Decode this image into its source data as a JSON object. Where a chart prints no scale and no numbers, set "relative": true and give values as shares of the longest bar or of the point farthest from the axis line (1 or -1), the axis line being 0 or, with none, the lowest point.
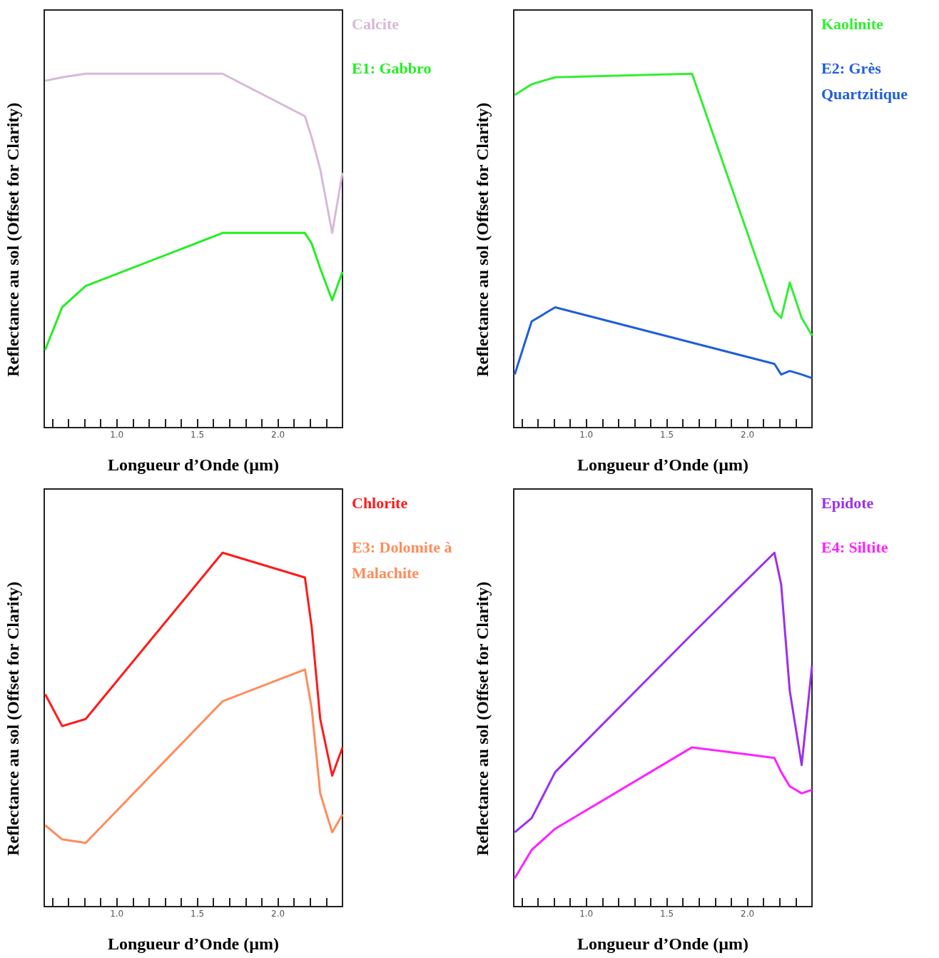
{
  "chart_data": [
    {
      "type": "line",
      "relative": true,
      "legend": "right",
      "xlabel": "Longueur d’Onde (µm)",
      "ylabel": "Reflectance au sol (Offset for Clarity)",
      "x": [
        0.556,
        0.661,
        0.807,
        1.656,
        2.167,
        2.209,
        2.262,
        2.336,
        2.4
      ],
      "xlim": [
        0.55,
        2.4
      ],
      "xticks": [
        {
          "value": 0.6,
          "label": null
        },
        {
          "value": 0.7,
          "label": null
        },
        {
          "value": 0.8,
          "label": null
        },
        {
          "value": 0.9,
          "label": null
        },
        {
          "value": 1.0,
          "label": "1.0"
        },
        {
          "value": 1.1,
          "label": null
        },
        {
          "value": 1.2,
          "label": null
        },
        {
          "value": 1.3,
          "label": null
        },
        {
          "value": 1.4,
          "label": null
        },
        {
          "value": 1.5,
          "label": "1.5"
        },
        {
          "value": 1.6,
          "label": null
        },
        {
          "value": 1.7,
          "label": null
        },
        {
          "value": 1.8,
          "label": null
        },
        {
          "value": 1.9,
          "label": null
        },
        {
          "value": 2.0,
          "label": "2.0"
        },
        {
          "value": 2.1,
          "label": null
        },
        {
          "value": 2.2,
          "label": null
        },
        {
          "value": 2.3,
          "label": null
        }
      ],
      "series": [
        {
          "name": "Calcite",
          "color": "#d8b8d8",
          "values": [
            0.98,
            0.99,
            1,
            1,
            0.88,
            0.82,
            0.73,
            0.55,
            0.72
          ]
        },
        {
          "name": "E1: Gabbro",
          "color": "#22ee22",
          "values": [
            0.22,
            0.34,
            0.4,
            0.55,
            0.55,
            0.52,
            0.45,
            0.36,
            0.44
          ]
        }
      ]
    },
    {
      "type": "line",
      "relative": true,
      "legend": "right",
      "xlabel": "Longueur d’Onde (µm)",
      "ylabel": "Reflectance au sol (Offset for Clarity)",
      "x": [
        0.556,
        0.661,
        0.807,
        1.656,
        2.167,
        2.209,
        2.262,
        2.336,
        2.4
      ],
      "xlim": [
        0.55,
        2.4
      ],
      "xticks": [
        {
          "value": 0.6,
          "label": null
        },
        {
          "value": 0.7,
          "label": null
        },
        {
          "value": 0.8,
          "label": null
        },
        {
          "value": 0.9,
          "label": null
        },
        {
          "value": 1.0,
          "label": "1.0"
        },
        {
          "value": 1.1,
          "label": null
        },
        {
          "value": 1.2,
          "label": null
        },
        {
          "value": 1.3,
          "label": null
        },
        {
          "value": 1.4,
          "label": null
        },
        {
          "value": 1.5,
          "label": "1.5"
        },
        {
          "value": 1.6,
          "label": null
        },
        {
          "value": 1.7,
          "label": null
        },
        {
          "value": 1.8,
          "label": null
        },
        {
          "value": 1.9,
          "label": null
        },
        {
          "value": 2.0,
          "label": "2.0"
        },
        {
          "value": 2.1,
          "label": null
        },
        {
          "value": 2.2,
          "label": null
        },
        {
          "value": 2.3,
          "label": null
        }
      ],
      "series": [
        {
          "name": "Kaolinite",
          "color": "#33ee33",
          "values": [
            0.94,
            0.97,
            0.99,
            1,
            0.33,
            0.31,
            0.41,
            0.31,
            0.26
          ]
        },
        {
          "name": "E2: Grès Quartzitique",
          "color": "#1f5fd8",
          "values": [
            0.15,
            0.3,
            0.34,
            0.24,
            0.18,
            0.15,
            0.16,
            0.15,
            0.14
          ]
        }
      ]
    },
    {
      "type": "line",
      "relative": true,
      "legend": "right",
      "xlabel": "Longueur d’Onde (µm)",
      "ylabel": "Reflectance au sol (Offset for Clarity)",
      "x": [
        0.556,
        0.661,
        0.807,
        1.656,
        2.167,
        2.209,
        2.262,
        2.336,
        2.4
      ],
      "xlim": [
        0.55,
        2.4
      ],
      "xticks": [
        {
          "value": 0.6,
          "label": null
        },
        {
          "value": 0.7,
          "label": null
        },
        {
          "value": 0.8,
          "label": null
        },
        {
          "value": 0.9,
          "label": null
        },
        {
          "value": 1.0,
          "label": "1.0"
        },
        {
          "value": 1.1,
          "label": null
        },
        {
          "value": 1.2,
          "label": null
        },
        {
          "value": 1.3,
          "label": null
        },
        {
          "value": 1.4,
          "label": null
        },
        {
          "value": 1.5,
          "label": "1.5"
        },
        {
          "value": 1.6,
          "label": null
        },
        {
          "value": 1.7,
          "label": null
        },
        {
          "value": 1.8,
          "label": null
        },
        {
          "value": 1.9,
          "label": null
        },
        {
          "value": 2.0,
          "label": "2.0"
        },
        {
          "value": 2.1,
          "label": null
        },
        {
          "value": 2.2,
          "label": null
        },
        {
          "value": 2.3,
          "label": null
        }
      ],
      "series": [
        {
          "name": "Chlorite",
          "color": "#ff1a1a",
          "values": [
            0.6,
            0.51,
            0.53,
            1,
            0.93,
            0.79,
            0.53,
            0.37,
            0.45
          ]
        },
        {
          "name": "E3: Dolomite à Malachite",
          "color": "#ff8c5a",
          "values": [
            0.23,
            0.19,
            0.18,
            0.58,
            0.67,
            0.56,
            0.32,
            0.21,
            0.26
          ]
        }
      ]
    },
    {
      "type": "line",
      "relative": true,
      "legend": "right",
      "xlabel": "Longueur d’Onde (µm)",
      "ylabel": "Reflectance au sol (Offset for Clarity)",
      "x": [
        0.556,
        0.661,
        0.807,
        1.656,
        2.167,
        2.209,
        2.262,
        2.336,
        2.4
      ],
      "xlim": [
        0.55,
        2.4
      ],
      "xticks": [
        {
          "value": 0.6,
          "label": null
        },
        {
          "value": 0.7,
          "label": null
        },
        {
          "value": 0.8,
          "label": null
        },
        {
          "value": 0.9,
          "label": null
        },
        {
          "value": 1.0,
          "label": "1.0"
        },
        {
          "value": 1.1,
          "label": null
        },
        {
          "value": 1.2,
          "label": null
        },
        {
          "value": 1.3,
          "label": null
        },
        {
          "value": 1.4,
          "label": null
        },
        {
          "value": 1.5,
          "label": "1.5"
        },
        {
          "value": 1.6,
          "label": null
        },
        {
          "value": 1.7,
          "label": null
        },
        {
          "value": 1.8,
          "label": null
        },
        {
          "value": 1.9,
          "label": null
        },
        {
          "value": 2.0,
          "label": "2.0"
        },
        {
          "value": 2.1,
          "label": null
        },
        {
          "value": 2.2,
          "label": null
        },
        {
          "value": 2.3,
          "label": null
        }
      ],
      "series": [
        {
          "name": "Epidote",
          "color": "#9a30f0",
          "values": [
            0.21,
            0.25,
            0.38,
            0.77,
            1,
            0.91,
            0.61,
            0.4,
            0.68
          ]
        },
        {
          "name": "E4: Siltite",
          "color": "#ff22ff",
          "values": [
            0.08,
            0.16,
            0.22,
            0.45,
            0.42,
            0.38,
            0.34,
            0.32,
            0.33
          ]
        }
      ]
    }
  ]
}
